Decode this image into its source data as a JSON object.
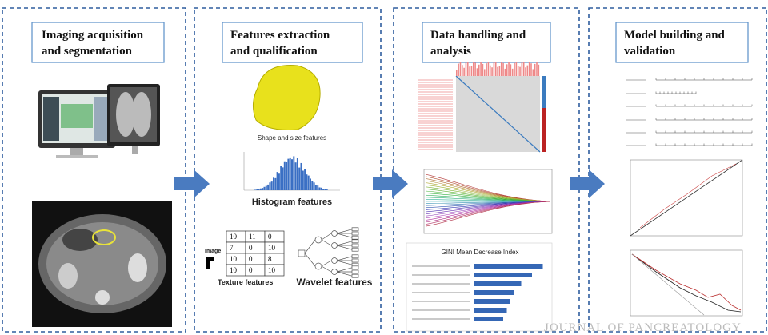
{
  "panels": [
    {
      "title_lines": [
        "Imaging acquisition",
        "and segmentation"
      ]
    },
    {
      "title_lines": [
        "Features extraction",
        "and qualification"
      ],
      "captions": {
        "shape": "Shape and size features",
        "histogram": "Histogram features",
        "image": "Image",
        "texture": "Texture features",
        "wavelet": "Wavelet features"
      },
      "texture_matrix": [
        [
          10,
          11,
          0
        ],
        [
          7,
          0,
          10
        ],
        [
          10,
          0,
          8
        ],
        [
          10,
          0,
          10
        ]
      ]
    },
    {
      "title_lines": [
        "Data handling and",
        "analysis"
      ],
      "bar_chart_title": "GINI Mean Decrease Index"
    },
    {
      "title_lines": [
        "Model building and",
        "validation"
      ]
    }
  ],
  "watermark": "JOURNAL OF PANCREATOLOGY"
}
